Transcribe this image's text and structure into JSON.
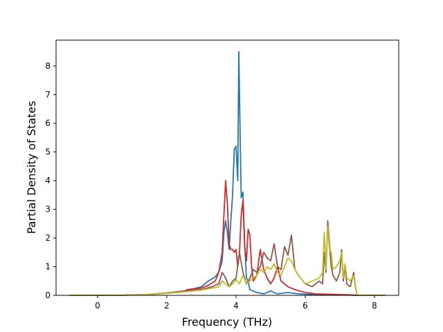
{
  "chart_data": {
    "type": "line",
    "title": "",
    "xlabel": "Frequency (THz)",
    "ylabel": "Partial Density of States",
    "xlim": [
      -1.2,
      8.7
    ],
    "ylim": [
      0,
      8.9
    ],
    "xticks": [
      0,
      2,
      4,
      6,
      8
    ],
    "xtick_labels": [
      "0",
      "2",
      "4",
      "6",
      "8"
    ],
    "yticks": [
      0,
      1,
      2,
      3,
      4,
      5,
      6,
      7,
      8
    ],
    "ytick_labels": [
      "0",
      "1",
      "2",
      "3",
      "4",
      "5",
      "6",
      "7",
      "8"
    ],
    "grid": false,
    "legend": "none",
    "series": [
      {
        "color": "#1f77b4",
        "x": [
          -0.8,
          0.6,
          1.5,
          2.0,
          2.5,
          3.0,
          3.2,
          3.4,
          3.5,
          3.6,
          3.65,
          3.7,
          3.75,
          3.8,
          3.85,
          3.9,
          3.95,
          4.0,
          4.05,
          4.08,
          4.12,
          4.15,
          4.2,
          4.25,
          4.3,
          4.35,
          4.4,
          4.5,
          4.6,
          4.8,
          5.0,
          5.2,
          5.5,
          5.8,
          6.2,
          6.5,
          6.8,
          7.0,
          7.2,
          7.5,
          7.8,
          8.3
        ],
        "y": [
          0,
          0,
          0.03,
          0.08,
          0.15,
          0.3,
          0.5,
          0.65,
          0.8,
          1.2,
          2.2,
          2.6,
          2.2,
          1.6,
          2.6,
          3.5,
          5.1,
          5.2,
          4.0,
          8.5,
          5.5,
          3.4,
          3.6,
          1.8,
          0.6,
          0.5,
          0.2,
          0.15,
          0.1,
          0.05,
          0.15,
          0.05,
          0.1,
          0.05,
          0.03,
          0.02,
          0.02,
          0.01,
          0.01,
          0,
          0,
          0
        ]
      },
      {
        "color": "#d62728",
        "x": [
          -0.8,
          0.6,
          1.5,
          2.0,
          2.5,
          2.6,
          3.0,
          3.2,
          3.4,
          3.5,
          3.6,
          3.65,
          3.7,
          3.75,
          3.8,
          3.85,
          3.9,
          3.95,
          4.0,
          4.05,
          4.1,
          4.15,
          4.2,
          4.25,
          4.3,
          4.35,
          4.4,
          4.45,
          4.5,
          4.6,
          4.7,
          4.8,
          4.9,
          5.0,
          5.1,
          5.2,
          5.3,
          5.5,
          5.7,
          6.0,
          6.3,
          6.6,
          6.9,
          7.2,
          7.4,
          7.5,
          7.8,
          8.3
        ],
        "y": [
          0,
          0,
          0.03,
          0.08,
          0.15,
          0.2,
          0.25,
          0.35,
          0.5,
          0.8,
          1.5,
          2.8,
          4.0,
          3.2,
          1.8,
          1.6,
          1.6,
          1.5,
          1.6,
          1.0,
          1.5,
          2.8,
          3.3,
          1.7,
          1.2,
          2.3,
          2.1,
          1.0,
          0.5,
          0.7,
          1.6,
          0.9,
          0.6,
          0.4,
          0.6,
          1.0,
          0.5,
          0.3,
          0.2,
          0.1,
          0.05,
          0.04,
          0.03,
          0.02,
          0.01,
          0,
          0,
          0
        ]
      },
      {
        "color": "#8c564b",
        "x": [
          -0.8,
          0.6,
          1.5,
          2.0,
          2.5,
          3.0,
          3.3,
          3.5,
          3.6,
          3.7,
          3.8,
          3.9,
          4.0,
          4.1,
          4.2,
          4.3,
          4.4,
          4.5,
          4.6,
          4.7,
          4.8,
          4.9,
          5.0,
          5.1,
          5.2,
          5.3,
          5.4,
          5.5,
          5.6,
          5.7,
          5.8,
          6.0,
          6.2,
          6.4,
          6.5,
          6.55,
          6.6,
          6.65,
          6.7,
          6.75,
          6.8,
          6.9,
          7.0,
          7.05,
          7.1,
          7.15,
          7.2,
          7.3,
          7.4,
          7.45,
          7.5,
          7.8,
          8.3
        ],
        "y": [
          0,
          0,
          0.03,
          0.08,
          0.15,
          0.2,
          0.3,
          0.4,
          0.8,
          0.6,
          0.3,
          0.5,
          0.6,
          1.5,
          0.8,
          0.4,
          0.6,
          0.9,
          0.8,
          1.0,
          1.5,
          1.3,
          1.2,
          1.8,
          1.0,
          0.9,
          1.7,
          1.4,
          2.1,
          0.9,
          0.7,
          0.4,
          0.3,
          0.5,
          0.4,
          1.5,
          0.8,
          2.6,
          1.8,
          1.0,
          0.7,
          0.5,
          0.8,
          1.6,
          0.5,
          1.0,
          0.4,
          0.3,
          0.8,
          0.3,
          0,
          0,
          0
        ]
      },
      {
        "color": "#bcbd22",
        "x": [
          -0.8,
          0.6,
          1.5,
          2.0,
          2.5,
          3.0,
          3.3,
          3.5,
          3.6,
          3.7,
          3.8,
          3.9,
          4.0,
          4.1,
          4.2,
          4.3,
          4.4,
          4.5,
          4.6,
          4.7,
          4.8,
          4.9,
          5.0,
          5.1,
          5.2,
          5.3,
          5.4,
          5.5,
          5.6,
          5.7,
          5.8,
          6.0,
          6.2,
          6.4,
          6.5,
          6.55,
          6.6,
          6.65,
          6.7,
          6.75,
          6.8,
          6.9,
          7.0,
          7.05,
          7.1,
          7.15,
          7.2,
          7.3,
          7.4,
          7.45,
          7.5,
          7.8,
          8.3
        ],
        "y": [
          0,
          0,
          0.03,
          0.07,
          0.12,
          0.18,
          0.25,
          0.3,
          0.5,
          0.4,
          0.3,
          0.4,
          0.55,
          0.4,
          0.7,
          0.4,
          0.5,
          0.6,
          0.7,
          0.9,
          0.8,
          1.0,
          0.9,
          1.1,
          0.8,
          0.7,
          1.0,
          1.3,
          1.2,
          0.9,
          0.7,
          0.4,
          0.5,
          0.6,
          0.8,
          2.2,
          0.9,
          2.4,
          1.6,
          1.5,
          0.9,
          1.0,
          1.2,
          1.5,
          0.6,
          1.1,
          0.6,
          0.5,
          0.7,
          0.3,
          0,
          0,
          0
        ]
      }
    ]
  }
}
